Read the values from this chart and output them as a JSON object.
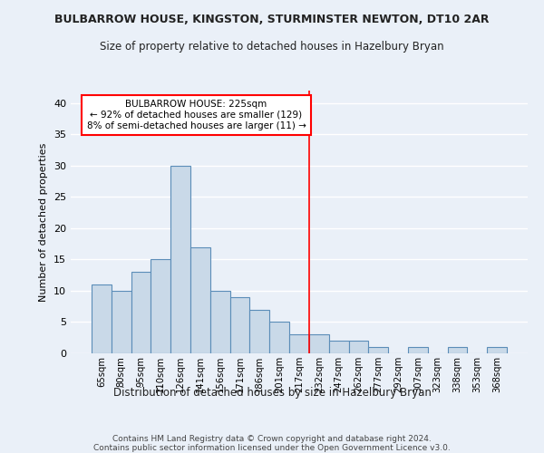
{
  "title": "BULBARROW HOUSE, KINGSTON, STURMINSTER NEWTON, DT10 2AR",
  "subtitle": "Size of property relative to detached houses in Hazelbury Bryan",
  "xlabel": "Distribution of detached houses by size in Hazelbury Bryan",
  "ylabel": "Number of detached properties",
  "footer": "Contains HM Land Registry data © Crown copyright and database right 2024.\nContains public sector information licensed under the Open Government Licence v3.0.",
  "categories": [
    "65sqm",
    "80sqm",
    "95sqm",
    "110sqm",
    "126sqm",
    "141sqm",
    "156sqm",
    "171sqm",
    "186sqm",
    "201sqm",
    "217sqm",
    "232sqm",
    "247sqm",
    "262sqm",
    "277sqm",
    "292sqm",
    "307sqm",
    "323sqm",
    "338sqm",
    "353sqm",
    "368sqm"
  ],
  "values": [
    11,
    10,
    13,
    15,
    30,
    17,
    10,
    9,
    7,
    5,
    3,
    3,
    2,
    2,
    1,
    0,
    1,
    0,
    1,
    0,
    1
  ],
  "bar_color": "#c9d9e8",
  "bar_edge_color": "#5b8db8",
  "background_color": "#eaf0f8",
  "grid_color": "#ffffff",
  "vline_x": 10.5,
  "vline_color": "red",
  "annotation_text": "BULBARROW HOUSE: 225sqm\n← 92% of detached houses are smaller (129)\n8% of semi-detached houses are larger (11) →",
  "annotation_box_color": "white",
  "annotation_border_color": "red",
  "ylim": [
    0,
    42
  ],
  "yticks": [
    0,
    5,
    10,
    15,
    20,
    25,
    30,
    35,
    40
  ]
}
